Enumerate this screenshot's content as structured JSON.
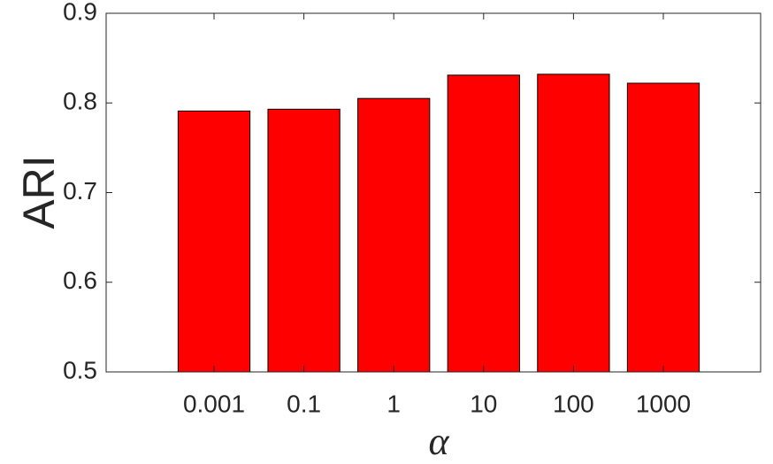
{
  "chart_data": {
    "type": "bar",
    "xlabel": "α",
    "ylabel": "ARI",
    "categories": [
      "0.001",
      "0.1",
      "1",
      "10",
      "100",
      "1000"
    ],
    "values": [
      0.791,
      0.793,
      0.805,
      0.831,
      0.832,
      0.822
    ],
    "color": "#ff0000",
    "ylim": [
      0.5,
      0.9
    ],
    "yticks": [
      0.5,
      0.6,
      0.7,
      0.8,
      0.9
    ],
    "grid": false
  }
}
